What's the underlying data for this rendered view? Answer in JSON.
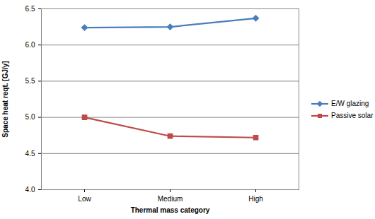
{
  "chart_data": {
    "type": "line",
    "x_label": "Thermal mass category",
    "y_label": "Space heat reqt. [GJ/y]",
    "categories": [
      "Low",
      "Medium",
      "High"
    ],
    "series": [
      {
        "name": "E/W glazing",
        "color": "#4a7ebb",
        "marker": "diamond",
        "values": [
          6.24,
          6.25,
          6.37
        ]
      },
      {
        "name": "Passive solar",
        "color": "#be4b48",
        "marker": "square",
        "values": [
          5.0,
          4.74,
          4.72
        ]
      }
    ],
    "ylim": [
      4,
      6.5
    ],
    "yticks": [
      4,
      4.5,
      5,
      5.5,
      6,
      6.5
    ],
    "grid": true,
    "legend": "right"
  }
}
